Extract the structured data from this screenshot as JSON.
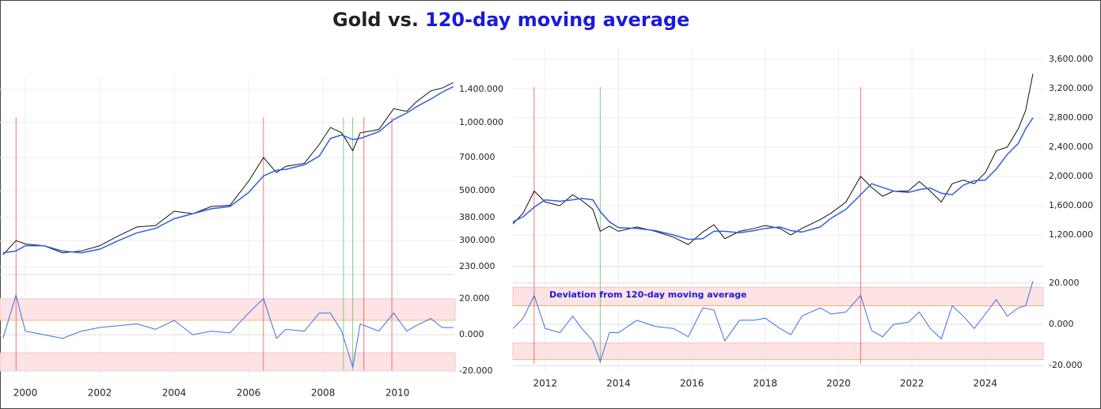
{
  "title": {
    "prefix": "Gold vs.",
    "highlight": "120-day moving average"
  },
  "chart_data": [
    {
      "type": "line",
      "log_scale": true,
      "grid": true,
      "x": [
        1999.4,
        1999.75,
        2000,
        2000.5,
        2001,
        2001.5,
        2002,
        2002.5,
        2003,
        2003.5,
        2004,
        2004.5,
        2005,
        2005.5,
        2006,
        2006.4,
        2006.75,
        2007,
        2007.5,
        2007.9,
        2008.2,
        2008.5,
        2008.8,
        2009,
        2009.5,
        2009.9,
        2010.25,
        2010.5,
        2010.9,
        2011.2,
        2011.5
      ],
      "series": [
        {
          "color": "#111111",
          "values": [
            260,
            300,
            290,
            285,
            265,
            270,
            285,
            315,
            345,
            350,
            405,
            395,
            425,
            430,
            550,
            700,
            600,
            640,
            660,
            800,
            950,
            900,
            750,
            900,
            930,
            1150,
            1120,
            1230,
            1380,
            1420,
            1500
          ]
        },
        {
          "color": "#2f5fe0",
          "values": [
            265,
            270,
            285,
            285,
            270,
            265,
            275,
            300,
            325,
            340,
            375,
            395,
            415,
            425,
            490,
            580,
            615,
            620,
            650,
            710,
            850,
            880,
            840,
            850,
            910,
            1030,
            1100,
            1170,
            1270,
            1360,
            1440
          ]
        }
      ],
      "xlim": [
        1999.32,
        2011.55
      ],
      "xticks": [
        2000,
        2002,
        2004,
        2006,
        2008,
        2010
      ],
      "ylim": [
        216,
        1580
      ],
      "yticks": [
        {
          "value": 230,
          "label": "230.000"
        },
        {
          "value": 300,
          "label": "300.000"
        },
        {
          "value": 380,
          "label": "380.000"
        },
        {
          "value": 500,
          "label": "500.000"
        },
        {
          "value": 700,
          "label": "700.000"
        },
        {
          "value": 1000,
          "label": "1,000.000"
        },
        {
          "value": 1400,
          "label": "1,400.000"
        }
      ],
      "vlines": [
        {
          "x": 1999.75,
          "color": "#f05050"
        },
        {
          "x": 2006.4,
          "color": "#f05050"
        },
        {
          "x": 2008.55,
          "color": "#5cc25c"
        },
        {
          "x": 2008.8,
          "color": "#5cc25c"
        },
        {
          "x": 2009.1,
          "color": "#f05050"
        },
        {
          "x": 2009.85,
          "color": "#f05050"
        }
      ],
      "deviation": {
        "color": "#3d6ee8",
        "values": [
          -2,
          22,
          2,
          0,
          -2,
          2,
          4,
          5,
          6,
          3,
          8,
          0,
          2,
          1,
          12,
          20,
          -2,
          3,
          2,
          12,
          12,
          2,
          -18,
          6,
          2,
          12,
          2,
          5,
          9,
          4,
          4
        ],
        "ylim": [
          -24,
          32
        ],
        "yticks": [
          {
            "value": -20,
            "label": "-20.000"
          },
          {
            "value": 0,
            "label": "0.000"
          },
          {
            "value": 20,
            "label": "20.000"
          }
        ],
        "bands": [
          {
            "from": 8,
            "to": 20,
            "color": "#fde3e3"
          },
          {
            "from": -20,
            "to": -10,
            "color": "#fde3e3"
          }
        ]
      }
    },
    {
      "type": "line",
      "log_scale": false,
      "grid": true,
      "x": [
        2011.12,
        2011.4,
        2011.7,
        2012,
        2012.4,
        2012.75,
        2013,
        2013.3,
        2013.5,
        2013.75,
        2014,
        2014.5,
        2015,
        2015.5,
        2015.9,
        2016.3,
        2016.6,
        2016.9,
        2017.3,
        2017.7,
        2018,
        2018.4,
        2018.7,
        2019,
        2019.5,
        2019.8,
        2020.2,
        2020.6,
        2020.9,
        2021.2,
        2021.5,
        2021.9,
        2022.2,
        2022.5,
        2022.8,
        2023.1,
        2023.4,
        2023.7,
        2024,
        2024.3,
        2024.6,
        2024.9,
        2025.1,
        2025.3
      ],
      "series": [
        {
          "color": "#111111",
          "values": [
            1350,
            1500,
            1800,
            1650,
            1600,
            1750,
            1670,
            1550,
            1250,
            1320,
            1250,
            1310,
            1250,
            1170,
            1070,
            1240,
            1340,
            1150,
            1250,
            1290,
            1330,
            1290,
            1200,
            1290,
            1410,
            1500,
            1650,
            2000,
            1850,
            1730,
            1800,
            1800,
            1930,
            1800,
            1650,
            1900,
            1950,
            1900,
            2050,
            2350,
            2400,
            2650,
            2900,
            3400
          ]
        },
        {
          "color": "#2f5fe0",
          "values": [
            1380,
            1450,
            1580,
            1680,
            1660,
            1680,
            1700,
            1680,
            1520,
            1380,
            1300,
            1290,
            1260,
            1200,
            1140,
            1150,
            1250,
            1250,
            1230,
            1260,
            1290,
            1310,
            1260,
            1240,
            1310,
            1430,
            1550,
            1750,
            1900,
            1850,
            1800,
            1780,
            1820,
            1840,
            1770,
            1750,
            1880,
            1940,
            1950,
            2100,
            2300,
            2450,
            2650,
            2800
          ]
        }
      ],
      "xlim": [
        2011.12,
        2025.58
      ],
      "xticks": [
        2012,
        2014,
        2016,
        2018,
        2020,
        2022,
        2024
      ],
      "ylim": [
        790,
        3760
      ],
      "yticks": [
        {
          "value": 1200,
          "label": "1,200.000"
        },
        {
          "value": 1600,
          "label": "1,600.000"
        },
        {
          "value": 2000,
          "label": "2,000.000"
        },
        {
          "value": 2400,
          "label": "2,400.000"
        },
        {
          "value": 2800,
          "label": "2,800.000"
        },
        {
          "value": 3200,
          "label": "3,200.000"
        },
        {
          "value": 3600,
          "label": "3,600.000"
        }
      ],
      "vlines": [
        {
          "x": 2011.7,
          "color": "#f05050"
        },
        {
          "x": 2013.5,
          "color": "#5cc25c"
        },
        {
          "x": 2020.6,
          "color": "#f05050"
        }
      ],
      "deviation": {
        "color": "#3d6ee8",
        "annotation": "Deviation from 120-day moving average",
        "values": [
          -2,
          3,
          14,
          -2,
          -4,
          4,
          -2,
          -8,
          -18,
          -4,
          -4,
          2,
          -1,
          -2,
          -6,
          8,
          7,
          -8,
          2,
          2,
          3,
          -2,
          -5,
          4,
          8,
          5,
          6,
          14,
          -3,
          -6,
          0,
          1,
          6,
          -2,
          -7,
          9,
          4,
          -2,
          5,
          12,
          4,
          8,
          9,
          21
        ],
        "ylim": [
          -23,
          28
        ],
        "yticks": [
          {
            "value": -20,
            "label": "-20.000"
          },
          {
            "value": 0,
            "label": "0.000"
          },
          {
            "value": 20,
            "label": "20.000"
          }
        ],
        "bands": [
          {
            "from": 9,
            "to": 18,
            "color": "#fde3e3"
          },
          {
            "from": -17,
            "to": -9,
            "color": "#fde3e3"
          }
        ]
      }
    }
  ]
}
